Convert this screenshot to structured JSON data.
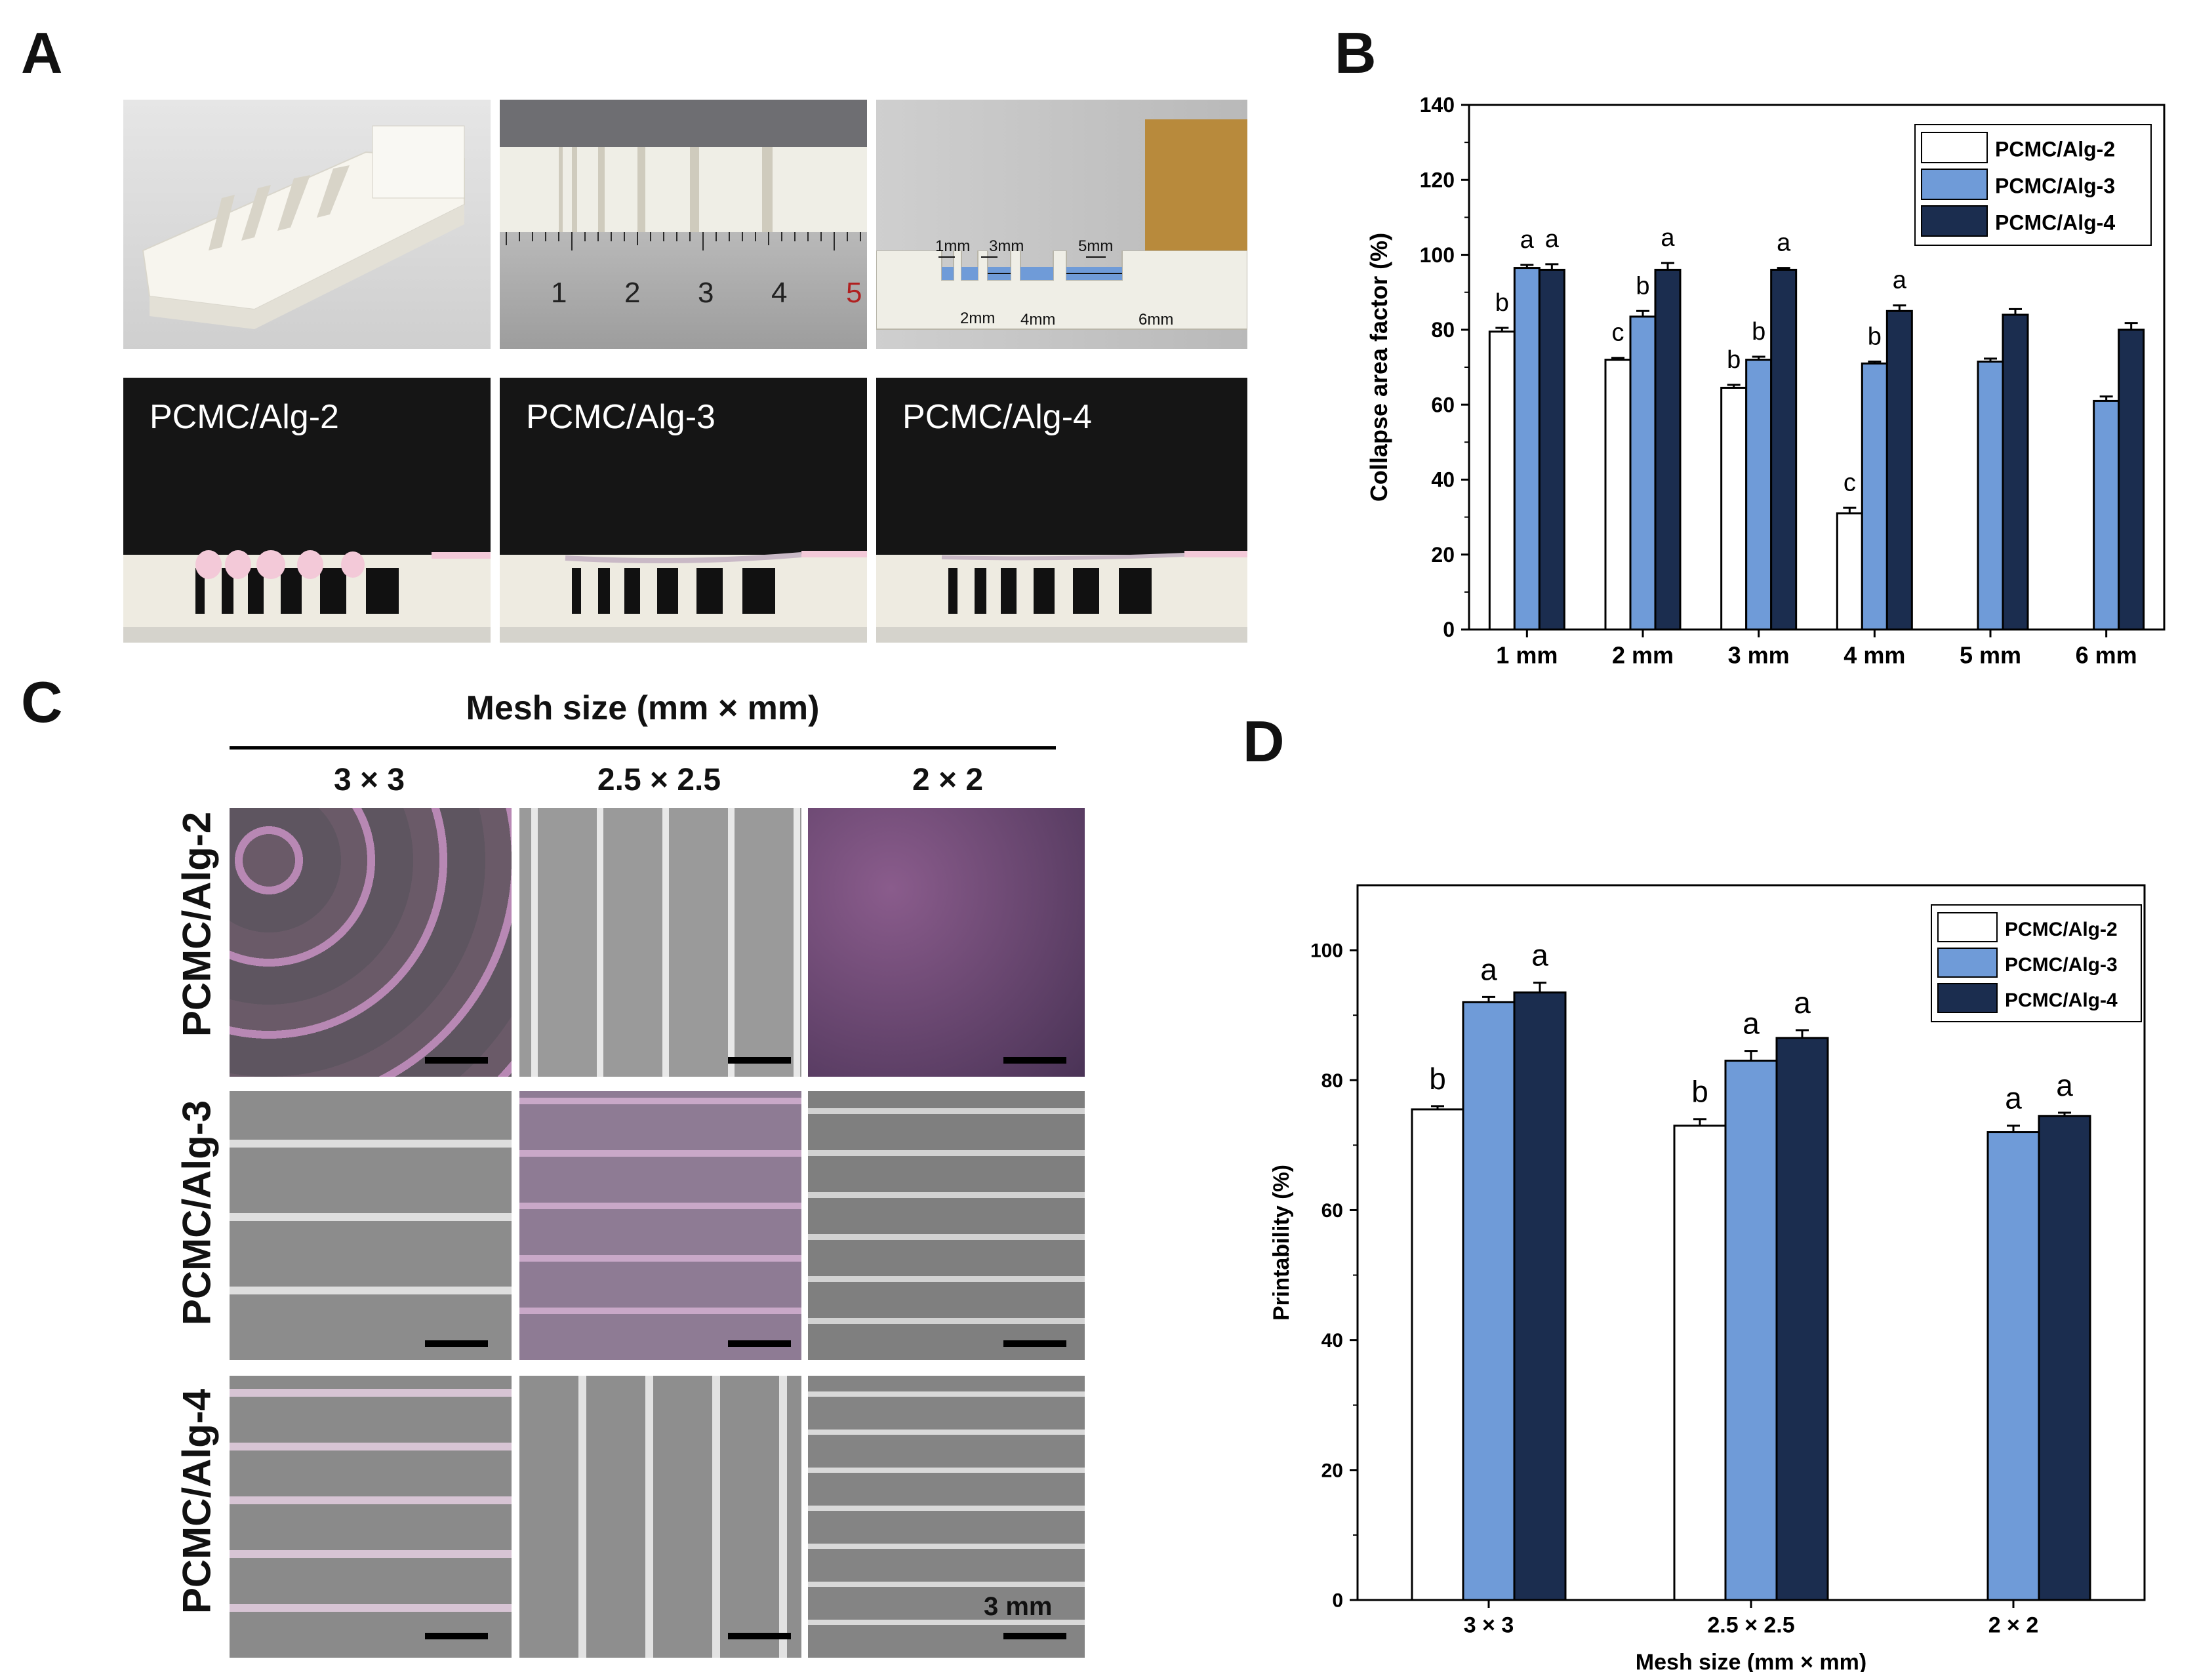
{
  "panels": {
    "a": "A",
    "b": "B",
    "c": "C",
    "d": "D"
  },
  "panel_a": {
    "ruler_numbers": [
      "1",
      "2",
      "3",
      "4",
      "5"
    ],
    "gap_labels": [
      "1mm",
      "3mm",
      "5mm",
      "2mm",
      "4mm",
      "6mm"
    ],
    "sample_labels": [
      "PCMC/Alg-2",
      "PCMC/Alg-3",
      "PCMC/Alg-4"
    ]
  },
  "panel_c": {
    "header": "Mesh size (mm  × mm)",
    "columns": [
      "3 × 3",
      "2.5 × 2.5",
      "2 × 2"
    ],
    "rows": [
      "PCMC/Alg-2",
      "PCMC/Alg-3",
      "PCMC/Alg-4"
    ],
    "scale_label": "3 mm"
  },
  "colors": {
    "alg2": "#ffffff",
    "alg3": "#6f9bd8",
    "alg4": "#1b2d4f"
  },
  "chart_data": [
    {
      "type": "bar",
      "panel": "B",
      "categories": [
        "1 mm",
        "2 mm",
        "3 mm",
        "4 mm",
        "5 mm",
        "6 mm"
      ],
      "series": [
        {
          "name": "PCMC/Alg-2",
          "values": [
            79.5,
            72.0,
            64.5,
            31.0,
            null,
            null
          ],
          "errors": [
            1.0,
            0.5,
            0.8,
            1.5,
            null,
            null
          ],
          "letters": [
            "b",
            "c",
            "b",
            "c",
            null,
            null
          ]
        },
        {
          "name": "PCMC/Alg-3",
          "values": [
            96.5,
            83.5,
            72.0,
            71.0,
            71.5,
            61.0
          ],
          "errors": [
            0.8,
            1.5,
            0.8,
            0.5,
            0.8,
            1.2
          ],
          "letters": [
            "a",
            "b",
            "b",
            "b",
            null,
            null
          ]
        },
        {
          "name": "PCMC/Alg-4",
          "values": [
            96.0,
            96.0,
            96.0,
            85.0,
            84.0,
            80.0
          ],
          "errors": [
            1.5,
            1.8,
            0.5,
            1.5,
            1.5,
            1.8
          ],
          "letters": [
            "a",
            "a",
            "a",
            "a",
            null,
            null
          ]
        }
      ],
      "ylabel": "Collapse area factor (%)",
      "xlabel": "",
      "ylim": [
        0,
        140
      ],
      "yticks": [
        0,
        20,
        40,
        60,
        80,
        100,
        120,
        140
      ],
      "legend_position": "top-right"
    },
    {
      "type": "bar",
      "panel": "D",
      "categories": [
        "3 × 3",
        "2.5 × 2.5",
        "2 × 2"
      ],
      "series": [
        {
          "name": "PCMC/Alg-2",
          "values": [
            75.5,
            73.0,
            null
          ],
          "errors": [
            0.5,
            1.0,
            null
          ],
          "letters": [
            "b",
            "b",
            null
          ]
        },
        {
          "name": "PCMC/Alg-3",
          "values": [
            92.0,
            83.0,
            72.0
          ],
          "errors": [
            0.8,
            1.5,
            1.0
          ],
          "letters": [
            "a",
            "a",
            "a"
          ]
        },
        {
          "name": "PCMC/Alg-4",
          "values": [
            93.5,
            86.5,
            74.5
          ],
          "errors": [
            1.5,
            1.2,
            0.5
          ],
          "letters": [
            "a",
            "a",
            "a"
          ]
        }
      ],
      "ylabel": "Printability (%)",
      "xlabel": "Mesh size (mm × mm)",
      "ylim": [
        0,
        110
      ],
      "yticks": [
        0,
        20,
        40,
        60,
        80,
        100
      ],
      "legend_position": "top-right"
    }
  ]
}
